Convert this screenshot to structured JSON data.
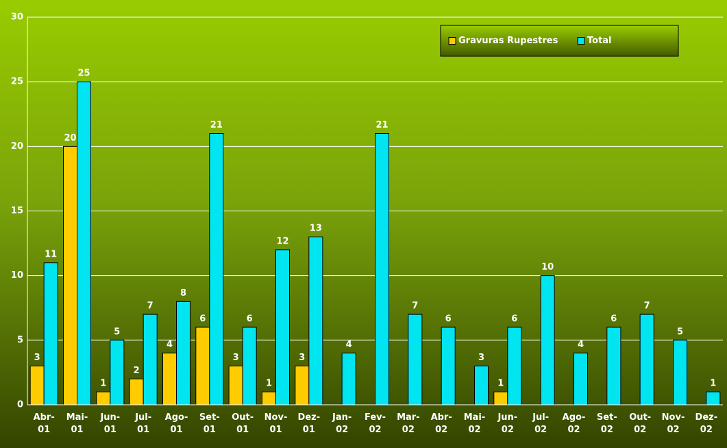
{
  "chart_data": {
    "type": "bar",
    "categories": [
      "Abr-01",
      "Mai-01",
      "Jun-01",
      "Jul-01",
      "Ago-01",
      "Set-01",
      "Out-01",
      "Nov-01",
      "Dez-01",
      "Jan-02",
      "Fev-02",
      "Mar-02",
      "Abr-02",
      "Mai-02",
      "Jun-02",
      "Jul-02",
      "Ago-02",
      "Set-02",
      "Out-02",
      "Nov-02",
      "Dez-02"
    ],
    "series": [
      {
        "name": "Gravuras Rupestres",
        "color": "#ffcc00",
        "values": [
          3,
          20,
          1,
          2,
          4,
          6,
          3,
          1,
          3,
          null,
          null,
          null,
          null,
          null,
          1,
          null,
          null,
          null,
          null,
          null,
          null
        ]
      },
      {
        "name": "Total",
        "color": "#00e5f0",
        "values": [
          11,
          25,
          5,
          7,
          8,
          21,
          6,
          12,
          13,
          4,
          21,
          7,
          6,
          3,
          6,
          10,
          4,
          6,
          7,
          5,
          1
        ]
      }
    ],
    "ylim": [
      0,
      30
    ],
    "yticks": [
      0,
      5,
      10,
      15,
      20,
      25,
      30
    ],
    "grid": true,
    "legend": "upper right"
  }
}
